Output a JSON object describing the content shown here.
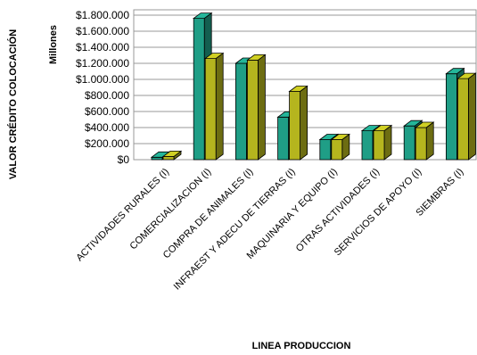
{
  "chart_data": {
    "type": "bar",
    "title": "",
    "xlabel": "LINEA PRODUCCION",
    "ylabel": "VALOR CRÉDITO COLOCACIÓN",
    "yunit": "Millones",
    "ylim": [
      0,
      1800000
    ],
    "yticks": [
      0,
      200000,
      400000,
      600000,
      800000,
      1000000,
      1200000,
      1400000,
      1600000,
      1800000
    ],
    "ytick_labels": [
      "$0",
      "$200.000",
      "$400.000",
      "$600.000",
      "$800.000",
      "$1.000.000",
      "$1.200.000",
      "$1.400.000",
      "$1.600.000",
      "$1.800.000"
    ],
    "grid": true,
    "legend": "none",
    "categories": [
      "ACTIVIDADES RURALES (I)",
      "COMERCIALIZACION (I)",
      "COMPRA DE ANIMALES (I)",
      "INFRAEST Y ADECU DE TIERRAS (I)",
      "MAQUINARIA Y EQUIPO (I)",
      "OTRAS ACTIVIDADES (I)",
      "SERVICIOS DE APOYO  (I)",
      "SIEMBRAS (I)"
    ],
    "series": [
      {
        "values": [
          30000,
          1760000,
          1200000,
          530000,
          250000,
          360000,
          420000,
          1070000
        ],
        "color": "#1f9e86"
      },
      {
        "values": [
          40000,
          1260000,
          1240000,
          850000,
          250000,
          360000,
          400000,
          1010000
        ],
        "color": "#b5b51e"
      }
    ]
  }
}
